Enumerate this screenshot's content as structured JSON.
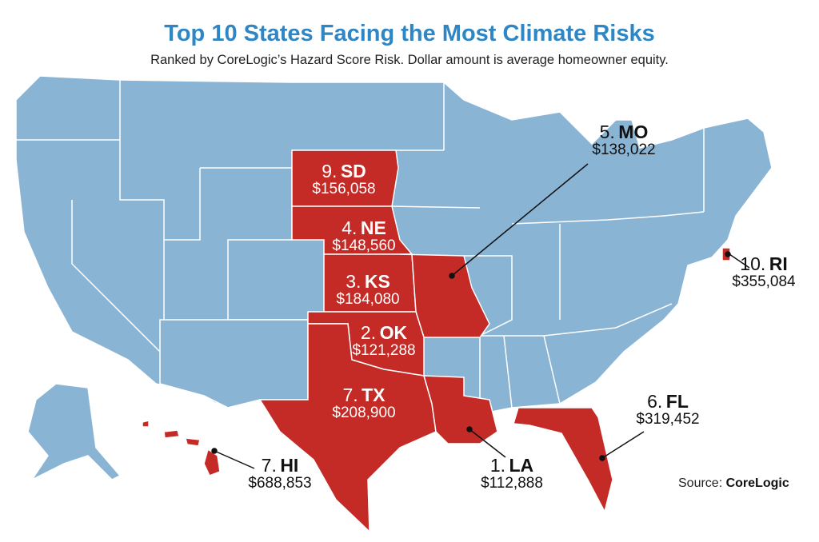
{
  "title": "Top 10 States Facing the Most Climate Risks",
  "subtitle": "Ranked by CoreLogic’s Hazard Score Risk. Dollar amount is average homeowner equity.",
  "colors": {
    "title": "#2e86c4",
    "base_state": "#8ab4d4",
    "risk_state": "#c52b26",
    "border": "#ffffff"
  },
  "states": [
    {
      "rank": "1.",
      "abbr": "LA",
      "equity": "$112,888"
    },
    {
      "rank": "2.",
      "abbr": "OK",
      "equity": "$121,288"
    },
    {
      "rank": "3.",
      "abbr": "KS",
      "equity": "$184,080"
    },
    {
      "rank": "4.",
      "abbr": "NE",
      "equity": "$148,560"
    },
    {
      "rank": "5.",
      "abbr": "MO",
      "equity": "$138,022"
    },
    {
      "rank": "6.",
      "abbr": "FL",
      "equity": "$319,452"
    },
    {
      "rank": "7.",
      "abbr": "TX",
      "equity": "$208,900"
    },
    {
      "rank": "7.",
      "abbr": "HI",
      "equity": "$688,853"
    },
    {
      "rank": "9.",
      "abbr": "SD",
      "equity": "$156,058"
    },
    {
      "rank": "10.",
      "abbr": "RI",
      "equity": "$355,084"
    }
  ],
  "source": {
    "label": "Source:",
    "name": "CoreLogic"
  }
}
